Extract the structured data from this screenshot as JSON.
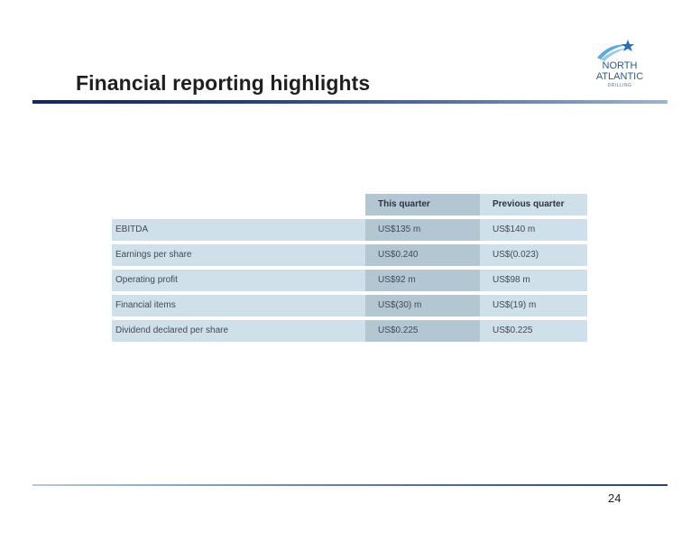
{
  "slide": {
    "title": "Financial reporting highlights",
    "page_number": "24"
  },
  "logo": {
    "line1": "NORTH",
    "line2": "ATLANTIC",
    "line3": "DRILLING",
    "star_color": "#2a6fb6",
    "swoosh_color": "#5fa9dc"
  },
  "table": {
    "headers": [
      "",
      "This quarter",
      "Previous quarter"
    ],
    "rows": [
      [
        "EBITDA",
        "US$135 m",
        "US$140 m"
      ],
      [
        "Earnings per share",
        "US$0.240",
        "US$(0.023)"
      ],
      [
        "Operating profit",
        "US$92 m",
        "US$98 m"
      ],
      [
        "Financial items",
        "US$(30) m",
        "US$(19) m"
      ],
      [
        "Dividend declared per share",
        "US$0.225",
        "US$0.225"
      ]
    ]
  },
  "colors": {
    "header_rule_dark": "#15265f",
    "cell_light": "#cfe0ea",
    "cell_dark": "#b3c7d3"
  }
}
